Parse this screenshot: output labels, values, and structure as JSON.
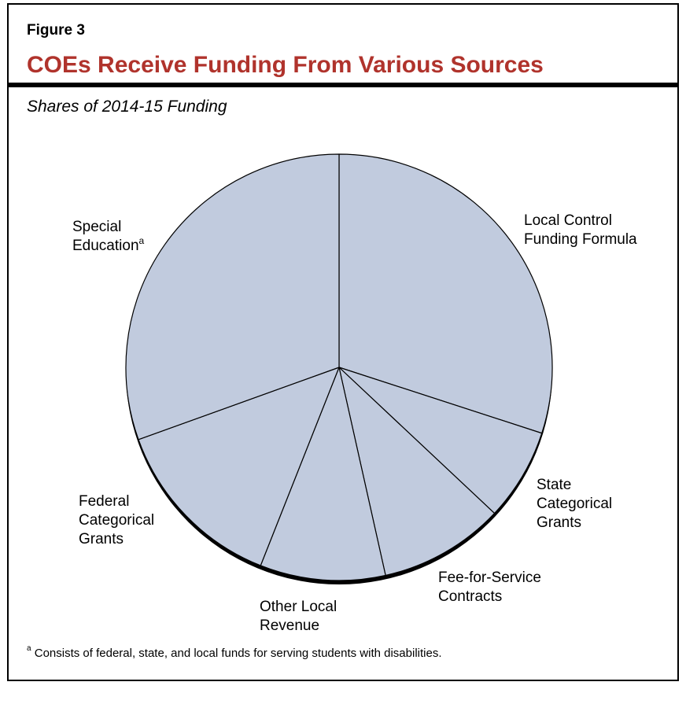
{
  "figure_label": "Figure 3",
  "title": "COEs Receive Funding From Various Sources",
  "subtitle": "Shares of 2014-15 Funding",
  "footnote": {
    "marker": "a",
    "text": "Consists of federal, state, and local funds for serving students with disabilities."
  },
  "chart_data": {
    "type": "pie",
    "title": "COEs Receive Funding From Various Sources",
    "subtitle": "Shares of 2014-15 Funding",
    "slice_color": "#c1cbde",
    "edge_color": "#000000",
    "slices": [
      {
        "label_lines": [
          "Local Control",
          "Funding Formula"
        ],
        "footnote_marker": "",
        "value": 30.0
      },
      {
        "label_lines": [
          "State",
          "Categorical",
          "Grants"
        ],
        "footnote_marker": "",
        "value": 7.0
      },
      {
        "label_lines": [
          "Fee-for-Service",
          "Contracts"
        ],
        "footnote_marker": "",
        "value": 9.5
      },
      {
        "label_lines": [
          "Other Local",
          "Revenue"
        ],
        "footnote_marker": "",
        "value": 9.5
      },
      {
        "label_lines": [
          "Federal",
          "Categorical",
          "Grants"
        ],
        "footnote_marker": "",
        "value": 13.5
      },
      {
        "label_lines": [
          "Special",
          "Education"
        ],
        "footnote_marker": "a",
        "value": 30.5
      }
    ]
  }
}
